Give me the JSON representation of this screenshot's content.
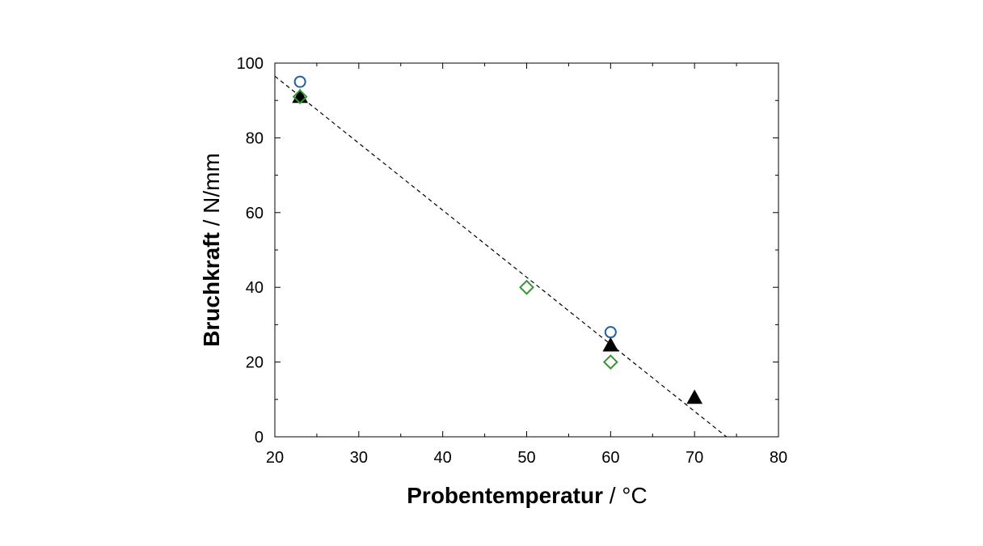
{
  "chart_data": {
    "type": "scatter",
    "xlabel_bold": "Probentemperatur",
    "xlabel_unit": " / °C",
    "ylabel_bold": "Bruchkraft",
    "ylabel_unit": " / N/mm",
    "xlim": [
      20,
      80
    ],
    "ylim": [
      0,
      100
    ],
    "x_ticks": [
      20,
      30,
      40,
      50,
      60,
      70,
      80
    ],
    "y_ticks": [
      0,
      20,
      40,
      60,
      80,
      100
    ],
    "x_minor_step": 5,
    "y_minor_step": 10,
    "grid": false,
    "legend": "none",
    "series": [
      {
        "marker": "circle-open",
        "color": "#1f5fa6",
        "points": [
          [
            23,
            95
          ],
          [
            60,
            28
          ]
        ]
      },
      {
        "marker": "diamond-open",
        "color": "#2e9a2e",
        "points": [
          [
            23,
            91
          ],
          [
            50,
            40
          ],
          [
            60,
            20
          ]
        ]
      },
      {
        "marker": "triangle-filled",
        "color": "#000000",
        "points": [
          [
            23,
            91
          ],
          [
            60,
            24.5
          ],
          [
            70,
            10.5
          ]
        ]
      }
    ],
    "trend_line": {
      "style": "dashed",
      "color": "#000000",
      "points": [
        [
          20,
          96.5
        ],
        [
          73.8,
          0
        ]
      ]
    }
  }
}
